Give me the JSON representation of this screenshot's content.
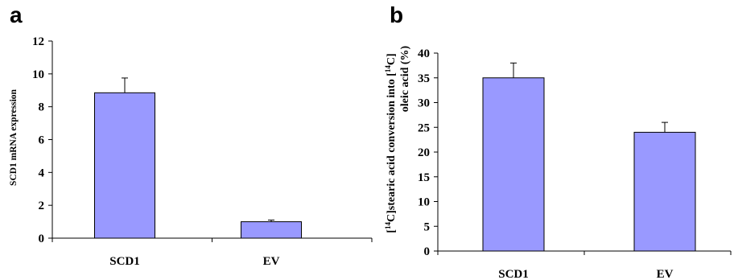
{
  "chart_data": [
    {
      "panel": "a",
      "type": "bar",
      "categories": [
        "SCD1",
        "EV"
      ],
      "values": [
        8.85,
        1.0
      ],
      "error_bars": [
        0.9,
        0.1
      ],
      "ylabel": "SCD1 mRNA expression",
      "ylim": [
        0,
        12
      ],
      "yticks": [
        0,
        2,
        4,
        6,
        8,
        10,
        12
      ],
      "bar_color": "#9999ff",
      "grid": false
    },
    {
      "panel": "b",
      "type": "bar",
      "categories": [
        "SCD1",
        "EV"
      ],
      "values": [
        35,
        24
      ],
      "error_bars": [
        3,
        2
      ],
      "ylabel_line1": "[14C]stearic acid conversion into [14C]",
      "ylabel_line2": "oleic acid (%)",
      "ylim": [
        0,
        40
      ],
      "yticks": [
        0,
        5,
        10,
        15,
        20,
        25,
        30,
        35,
        40
      ],
      "bar_color": "#9999ff",
      "grid": false
    }
  ]
}
